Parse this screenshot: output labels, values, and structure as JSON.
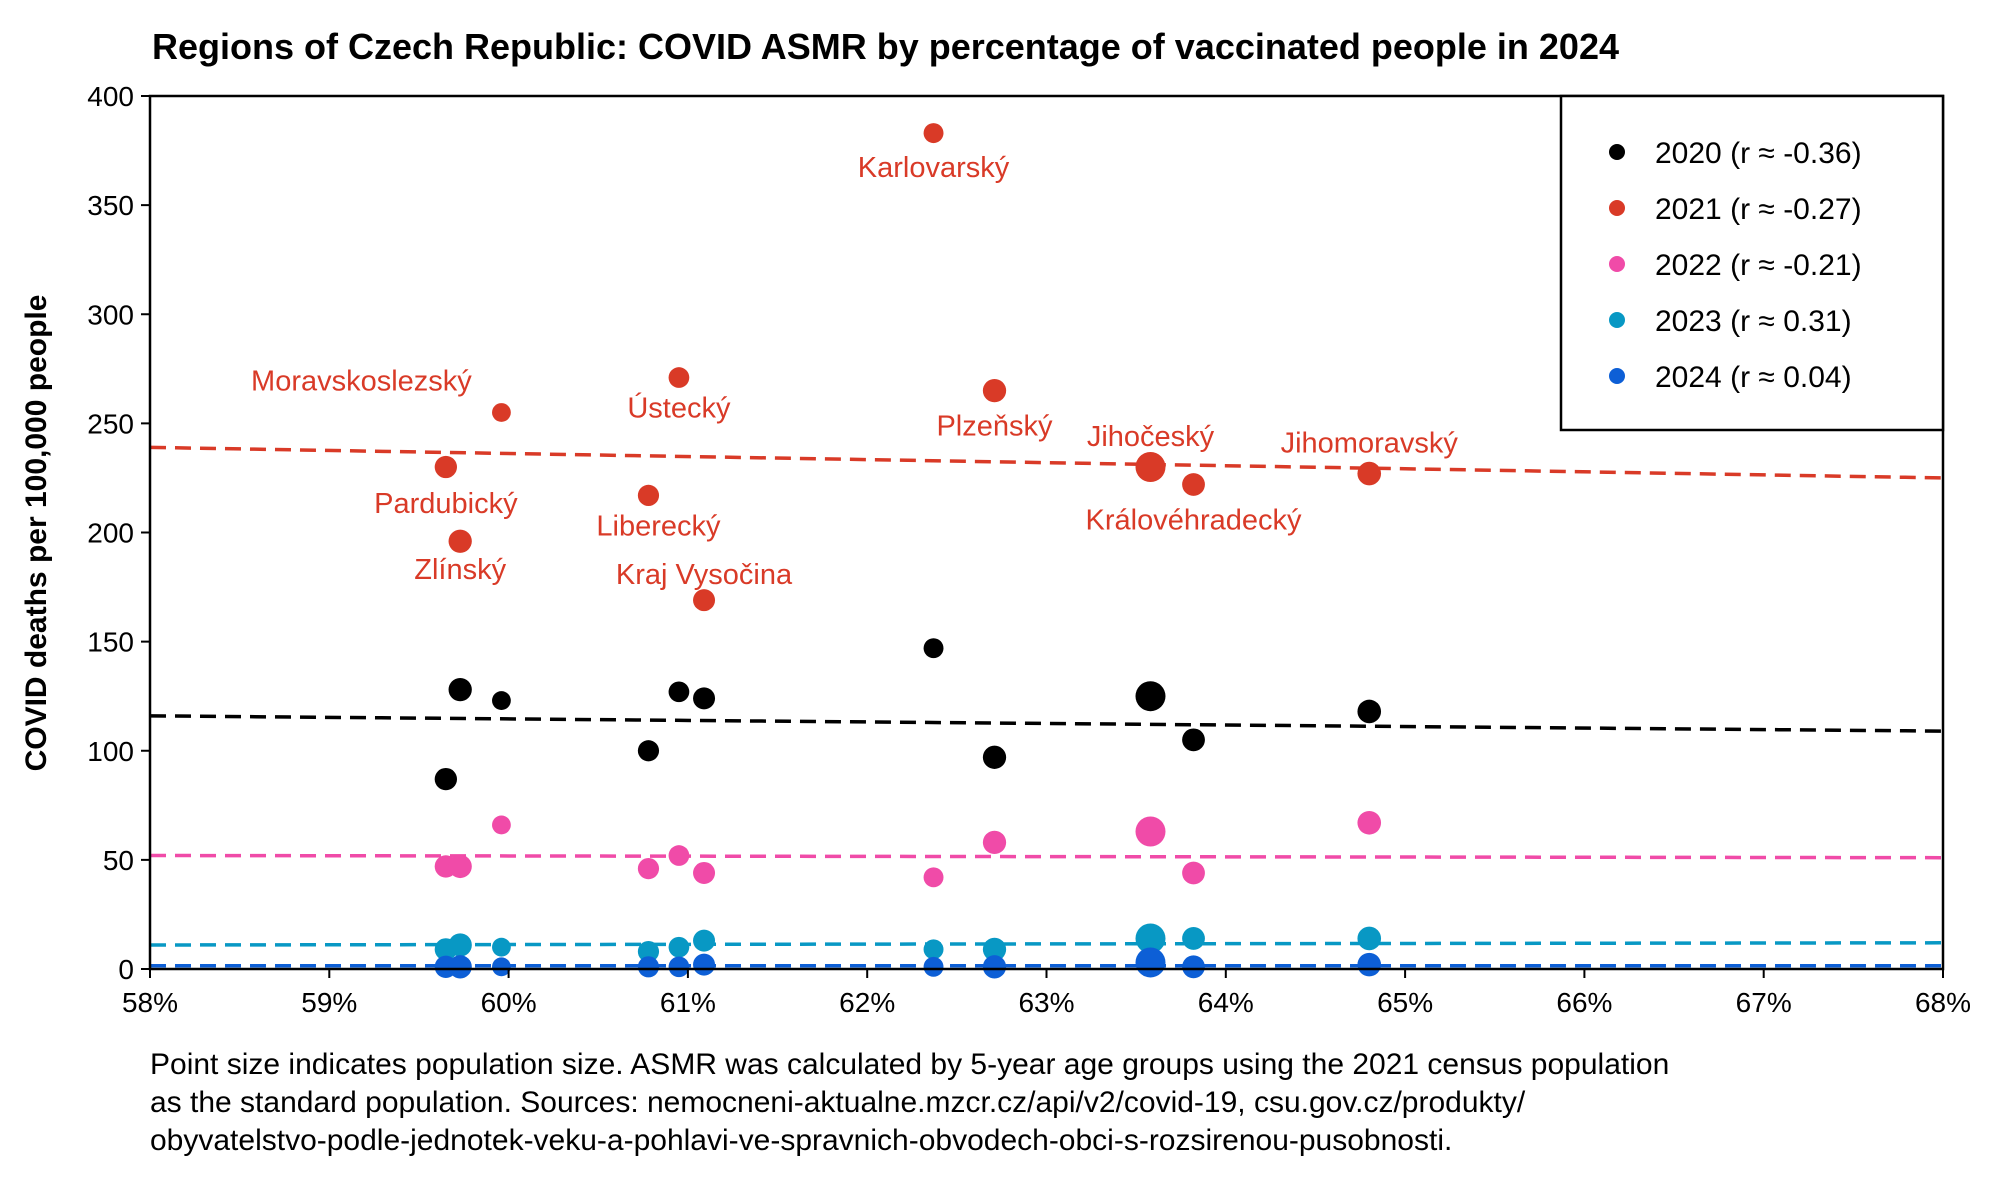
{
  "chart_data": {
    "type": "scatter",
    "title": "Regions of Czech Republic: COVID ASMR by percentage of vaccinated people in 2024",
    "xlabel": "",
    "ylabel": "COVID deaths per 100,000 people",
    "xlim": [
      58,
      68
    ],
    "ylim": [
      0,
      400
    ],
    "x_ticks": [
      58,
      59,
      60,
      61,
      62,
      63,
      64,
      65,
      66,
      67,
      68
    ],
    "x_tick_labels": [
      "58%",
      "59%",
      "60%",
      "61%",
      "62%",
      "63%",
      "64%",
      "65%",
      "66%",
      "67%",
      "68%"
    ],
    "y_ticks": [
      0,
      50,
      100,
      150,
      200,
      250,
      300,
      350,
      400
    ],
    "y_tick_labels": [
      "0",
      "50",
      "100",
      "150",
      "200",
      "250",
      "300",
      "350",
      "400"
    ],
    "grid": false,
    "legend_position": "top-right",
    "regions": [
      "Pardubický",
      "Zlínský",
      "Moravskoslezský",
      "Liberecký",
      "Ústecký",
      "Kraj Vysočina",
      "Karlovarský",
      "Plzeňský",
      "Jihočeský",
      "Královéhradecký",
      "Jihomoravský"
    ],
    "x": [
      59.65,
      59.73,
      59.96,
      60.78,
      60.95,
      61.09,
      62.37,
      62.71,
      63.58,
      63.82,
      64.8
    ],
    "population_relative": [
      0.52,
      0.58,
      0.3,
      0.45,
      0.42,
      0.5,
      0.37,
      0.58,
      1.0,
      0.55,
      0.6
    ],
    "series": [
      {
        "name": "2020 (r ≈ -0.36)",
        "color": "#000000",
        "values": [
          87,
          128,
          123,
          100,
          127,
          124,
          147,
          97,
          125,
          105,
          118
        ],
        "trend": [
          116,
          109
        ]
      },
      {
        "name": "2021 (r ≈ -0.27)",
        "color": "#d93a27",
        "values": [
          230,
          196,
          255,
          217,
          271,
          169,
          383,
          265,
          230,
          222,
          227
        ],
        "trend": [
          239,
          225
        ]
      },
      {
        "name": "2022 (r ≈ -0.21)",
        "color": "#f04ba8",
        "values": [
          47,
          47,
          66,
          46,
          52,
          44,
          42,
          58,
          63,
          44,
          67
        ],
        "trend": [
          52,
          51
        ]
      },
      {
        "name": "2023 (r ≈ 0.31)",
        "color": "#0898c4",
        "values": [
          9,
          11,
          10,
          8,
          10,
          13,
          9,
          9,
          14,
          14,
          14
        ],
        "trend": [
          11,
          12
        ]
      },
      {
        "name": "2024 (r ≈ 0.04)",
        "color": "#0d5fd6",
        "values": [
          1,
          1,
          1,
          1,
          1,
          2,
          1,
          1,
          3,
          1,
          2
        ],
        "trend": [
          1.5,
          1.5
        ]
      }
    ],
    "labeled_series": "2021 (r ≈ -0.27)"
  },
  "footnote": {
    "lines": [
      "Point size indicates population size. ASMR was calculated by 5-year age groups using the 2021 census population",
      "as the standard population. Sources: nemocneni-aktualne.mzcr.cz/api/v2/covid-19, csu.gov.cz/produkty/",
      "obyvatelstvo-podle-jednotek-veku-a-pohlavi-ve-spravnich-obvodech-obci-s-rozsirenou-pusobnosti."
    ]
  }
}
